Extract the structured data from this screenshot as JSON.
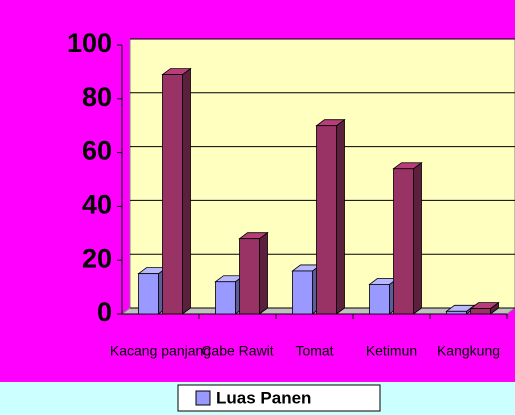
{
  "chart_data": {
    "type": "bar3d",
    "categories": [
      "Kacang panjang",
      "Cabe Rawit",
      "Tomat",
      "Ketimun",
      "Kangkung"
    ],
    "series": [
      {
        "name": "Luas Panen",
        "color": "#9999ff",
        "values": [
          15,
          12,
          16,
          11,
          1
        ]
      },
      {
        "color": "#993366",
        "values": [
          89,
          28,
          70,
          54,
          2
        ]
      }
    ],
    "ylim": [
      0,
      100
    ],
    "yticks": [
      0,
      20,
      40,
      60,
      80,
      100
    ],
    "grid": true,
    "legend": "bottom"
  }
}
